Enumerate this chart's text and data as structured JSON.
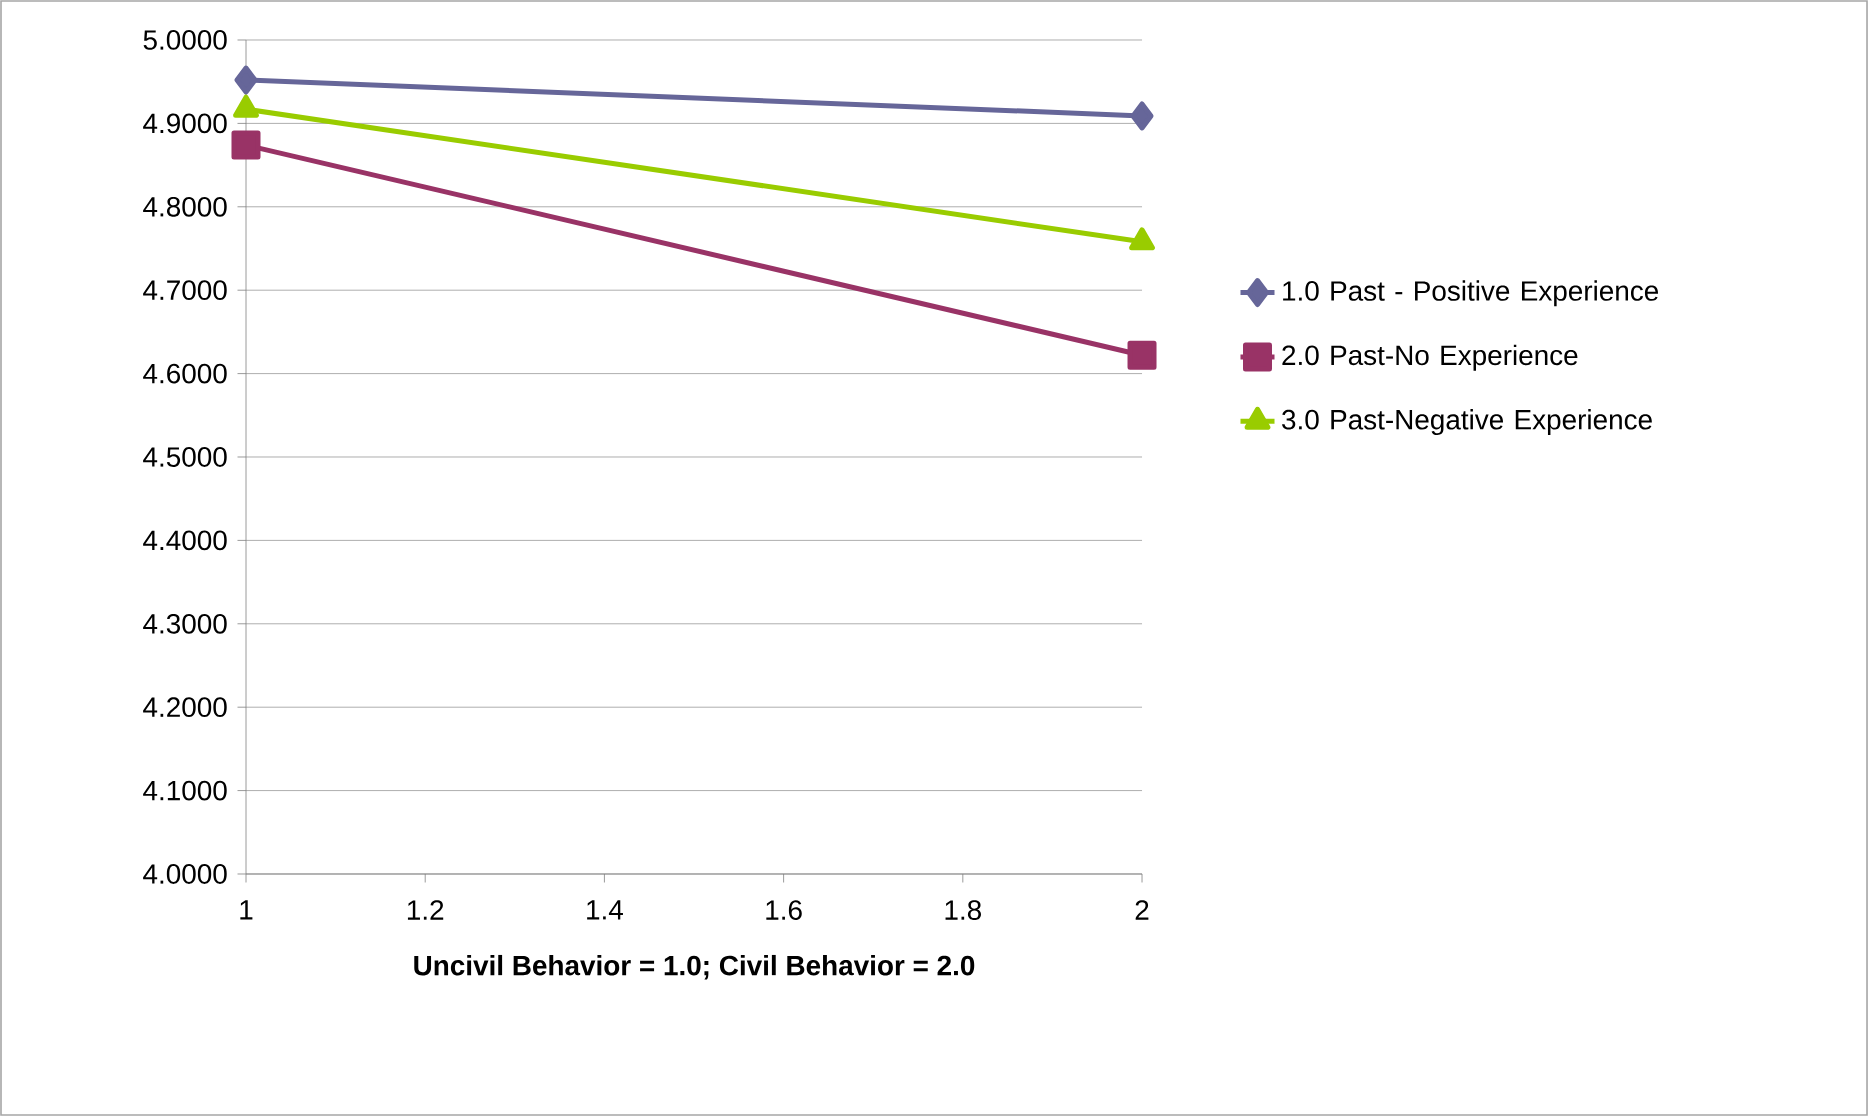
{
  "chart_data": {
    "type": "line",
    "xlabel": "**Uncivil Behavior = 1.0; Civil Behavior = 2.0**",
    "x": [
      1,
      2
    ],
    "series": [
      {
        "name": "1.0 Past - Positive Experience",
        "color": "#666699",
        "marker": "diamond",
        "values": [
          4.952,
          4.909
        ]
      },
      {
        "name": "2.0 Past-No Experience",
        "color": "#993366",
        "marker": "square",
        "values": [
          4.874,
          4.622
        ]
      },
      {
        "name": "3.0 Past-Negative Experience",
        "color": "#99cc00",
        "marker": "triangle",
        "values": [
          4.917,
          4.758
        ]
      }
    ],
    "xlim": [
      1,
      2
    ],
    "xticks": [
      1,
      {
        "value": 1.2,
        "label": "1.2"
      },
      {
        "value": 1.4,
        "label": "1.4"
      },
      {
        "value": 1.6,
        "label": "1.6"
      },
      {
        "value": 1.8,
        "label": "1.8"
      },
      2
    ],
    "ylim": [
      4,
      5
    ],
    "yticks": [
      {
        "value": 4,
        "label": "4.0000"
      },
      {
        "value": 4.1,
        "label": "4.1000"
      },
      {
        "value": 4.2,
        "label": "4.2000"
      },
      {
        "value": 4.3,
        "label": "4.3000"
      },
      {
        "value": 4.4,
        "label": "4.4000"
      },
      {
        "value": 4.5,
        "label": "4.5000"
      },
      {
        "value": 4.6,
        "label": "4.6000"
      },
      {
        "value": 4.7,
        "label": "4.7000"
      },
      {
        "value": 4.8,
        "label": "4.8000"
      },
      {
        "value": 4.9,
        "label": "4.9000"
      },
      {
        "value": 5,
        "label": "5.0000"
      }
    ],
    "grid": "y",
    "legend": "right",
    "line_style": "solid"
  }
}
